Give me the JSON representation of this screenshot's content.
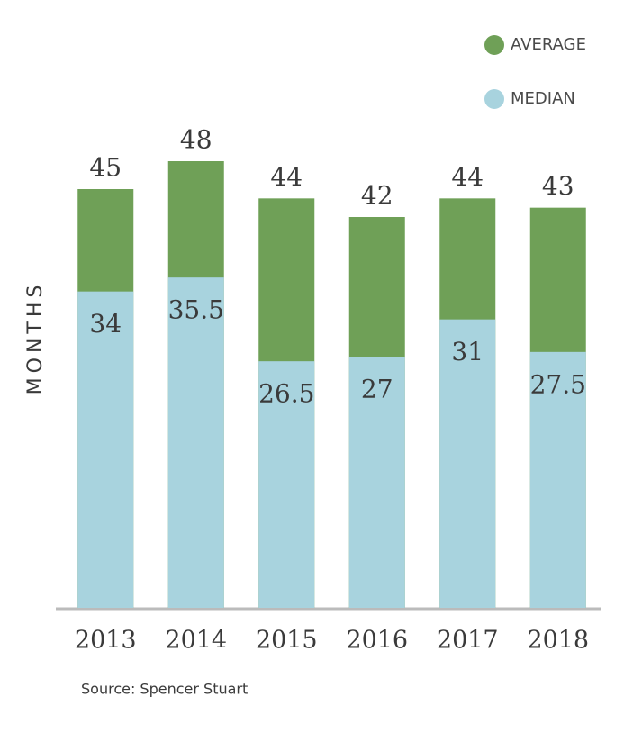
{
  "chart_data": {
    "type": "overlap-bar",
    "y_label": "MONTHS",
    "source": "Source: Spencer Stuart",
    "categories": [
      "2013",
      "2014",
      "2015",
      "2016",
      "2017",
      "2018"
    ],
    "series": [
      {
        "name": "AVERAGE",
        "color": "#6fa057",
        "values": [
          45,
          48,
          44,
          42,
          44,
          43
        ]
      },
      {
        "name": "MEDIAN",
        "color": "#a8d3de",
        "values": [
          34,
          35.5,
          26.5,
          27,
          31,
          27.5
        ]
      }
    ]
  }
}
